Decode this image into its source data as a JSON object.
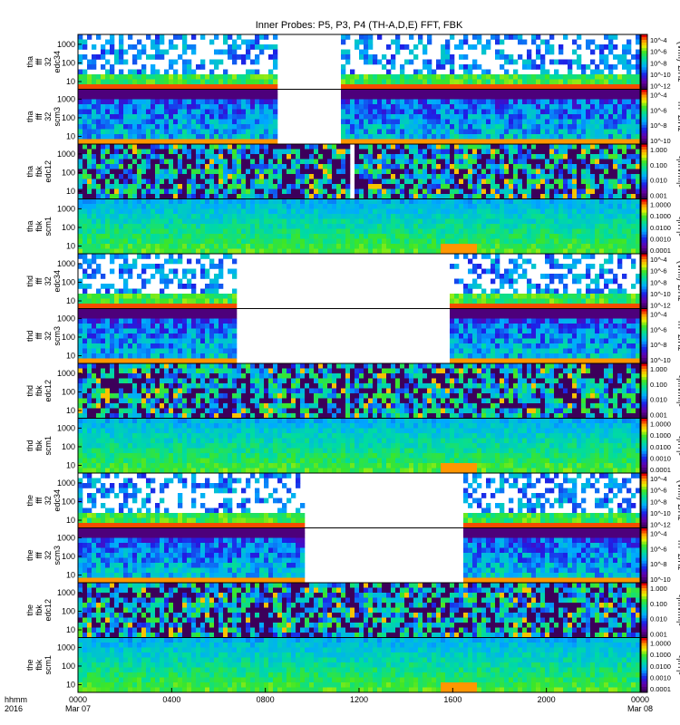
{
  "title": "Inner Probes: P5, P3, P4 (TH-A,D,E) FFT, FBK",
  "x_axis": {
    "row_label_1": "hhmm",
    "row_label_2": "2016",
    "ticks": [
      {
        "main": "0000",
        "sub": "Mar 07"
      },
      {
        "main": "0400",
        "sub": ""
      },
      {
        "main": "0800",
        "sub": ""
      },
      {
        "main": "1200",
        "sub": ""
      },
      {
        "main": "1600",
        "sub": ""
      },
      {
        "main": "2000",
        "sub": ""
      },
      {
        "main": "0000",
        "sub": "Mar 08"
      }
    ]
  },
  "chart_data": {
    "type": "heatmap",
    "time_range_hours": [
      0,
      24
    ],
    "frequency_axis": "log",
    "probes": [
      {
        "name": "tha",
        "panels": [
          {
            "labels": [
              "tha",
              "fff",
              "32",
              "edc34"
            ],
            "yticks": [
              "1000",
              "100",
              "10"
            ],
            "unit": "(V/m)^2/Hz",
            "cbar_ticks": [
              "10^-4",
              "10^-6",
              "10^-8",
              "10^-10",
              "10^-12"
            ],
            "gaps_hours": [
              [
                8.6,
                11.3
              ]
            ],
            "kind": "efield_fft"
          },
          {
            "labels": [
              "tha",
              "fff",
              "32",
              "scm3"
            ],
            "yticks": [
              "1000",
              "100",
              "10"
            ],
            "unit": "nT^2/Hz",
            "cbar_ticks": [
              "10^-4",
              "10^-6",
              "10^-8",
              "10^-10"
            ],
            "gaps_hours": [
              [
                8.6,
                11.3
              ]
            ],
            "kind": "bfield_fft"
          },
          {
            "labels": [
              "tha",
              "fbk",
              "edc12"
            ],
            "yticks": [
              "1000",
              "100",
              "10"
            ],
            "unit": "<|mV/m|>",
            "cbar_ticks": [
              "1.000",
              "0.100",
              "0.010",
              "0.001"
            ],
            "gaps_hours": [
              [
                11.7,
                11.8
              ],
              [
                11.95,
                12.05
              ]
            ],
            "kind": "efield_fbk"
          },
          {
            "labels": [
              "tha",
              "fbk",
              "scm1"
            ],
            "yticks": [
              "1000",
              "100",
              "10"
            ],
            "unit": "<|nT|>",
            "cbar_ticks": [
              "1.0000",
              "0.1000",
              "0.0100",
              "0.0010",
              "0.0001"
            ],
            "gaps_hours": [
              [
                11.75,
                11.85
              ],
              [
                11.95,
                12.05
              ]
            ],
            "kind": "bfield_fbk"
          }
        ]
      },
      {
        "name": "thd",
        "panels": [
          {
            "labels": [
              "thd",
              "fff",
              "32",
              "edc34"
            ],
            "yticks": [
              "1000",
              "100",
              "10"
            ],
            "unit": "(V/m)^2/Hz",
            "cbar_ticks": [
              "10^-4",
              "10^-6",
              "10^-8",
              "10^-10",
              "10^-12"
            ],
            "gaps_hours": [
              [
                6.7,
                15.8
              ]
            ],
            "kind": "efield_fft"
          },
          {
            "labels": [
              "thd",
              "fff",
              "32",
              "scm3"
            ],
            "yticks": [
              "1000",
              "100",
              "10"
            ],
            "unit": "nT^2/Hz",
            "cbar_ticks": [
              "10^-4",
              "10^-6",
              "10^-8",
              "10^-10"
            ],
            "gaps_hours": [
              [
                6.7,
                15.8
              ]
            ],
            "kind": "bfield_fft"
          },
          {
            "labels": [
              "thd",
              "fbk",
              "edc12"
            ],
            "yticks": [
              "1000",
              "100",
              "10"
            ],
            "unit": "<|mV/m|>",
            "cbar_ticks": [
              "1.000",
              "0.100",
              "0.010",
              "0.001"
            ],
            "gaps_hours": [
              [
                16.95,
                17.05
              ]
            ],
            "kind": "efield_fbk"
          },
          {
            "labels": [
              "thd",
              "fbk",
              "scm1"
            ],
            "yticks": [
              "1000",
              "100",
              "10"
            ],
            "unit": "<|nT|>",
            "cbar_ticks": [
              "1.0000",
              "0.1000",
              "0.0100",
              "0.0010",
              "0.0001"
            ],
            "gaps_hours": [
              [
                16.95,
                17.05
              ]
            ],
            "kind": "bfield_fbk"
          }
        ]
      },
      {
        "name": "the",
        "panels": [
          {
            "labels": [
              "the",
              "fff",
              "32",
              "edc34"
            ],
            "yticks": [
              "1000",
              "100",
              "10"
            ],
            "unit": "(V/m)^2/Hz",
            "cbar_ticks": [
              "10^-4",
              "10^-6",
              "10^-8",
              "10^-10",
              "10^-12"
            ],
            "gaps_hours": [
              [
                9.7,
                16.4
              ]
            ],
            "kind": "efield_fft"
          },
          {
            "labels": [
              "the",
              "fff",
              "32",
              "scm3"
            ],
            "yticks": [
              "1000",
              "100",
              "10"
            ],
            "unit": "nT^2/Hz",
            "cbar_ticks": [
              "10^-4",
              "10^-6",
              "10^-8",
              "10^-10"
            ],
            "gaps_hours": [
              [
                9.7,
                16.4
              ]
            ],
            "kind": "bfield_fft"
          },
          {
            "labels": [
              "the",
              "fbk",
              "edc12"
            ],
            "yticks": [
              "1000",
              "100",
              "10"
            ],
            "unit": "<|mV/m|>",
            "cbar_ticks": [
              "1.000",
              "0.100",
              "0.010",
              "0.001"
            ],
            "gaps_hours": [],
            "kind": "efield_fbk"
          },
          {
            "labels": [
              "the",
              "fbk",
              "scm1"
            ],
            "yticks": [
              "1000",
              "100",
              "10"
            ],
            "unit": "<|nT|>",
            "cbar_ticks": [
              "1.0000",
              "0.1000",
              "0.0100",
              "0.0010",
              "0.0001"
            ],
            "gaps_hours": [
              [
                16.0,
                16.1
              ]
            ],
            "kind": "bfield_fbk"
          }
        ]
      }
    ]
  }
}
